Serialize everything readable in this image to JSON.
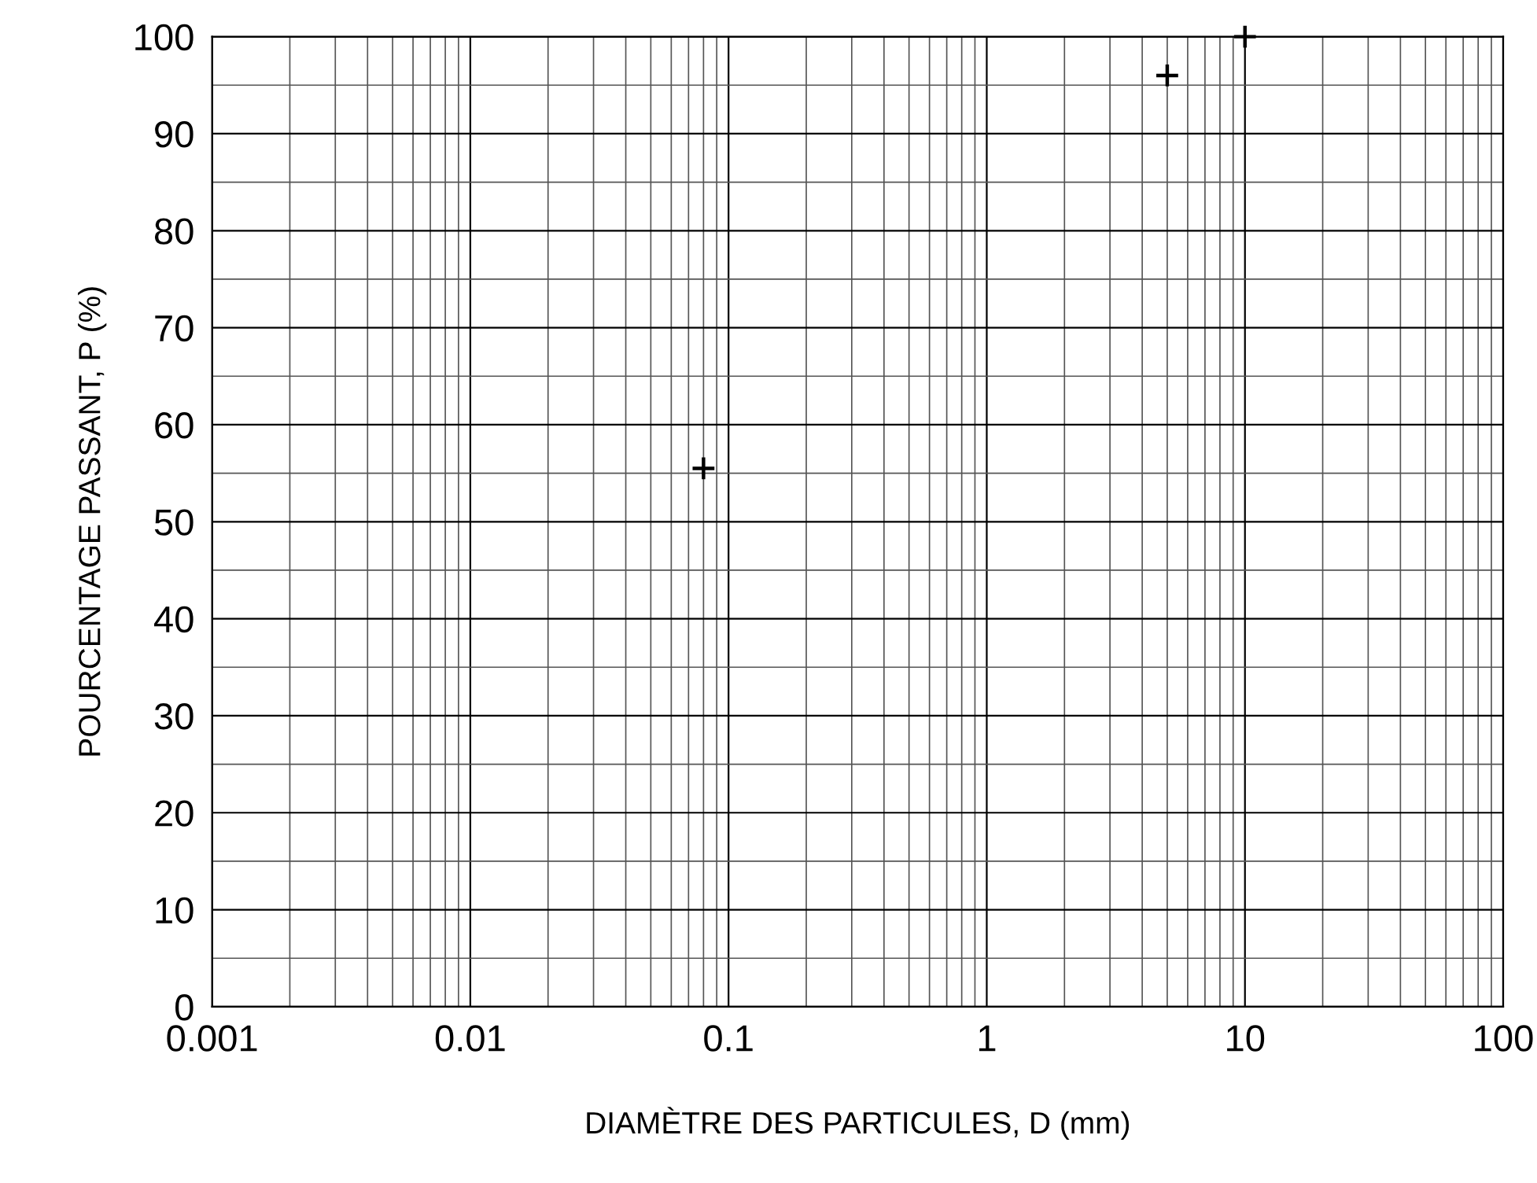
{
  "chart_data": {
    "type": "scatter",
    "xlabel": "DIAMÈTRE DES PARTICULES, D (mm)",
    "ylabel": "POURCENTAGE PASSANT, P (%)",
    "x": [
      0.08,
      5,
      10
    ],
    "values": [
      55.5,
      96,
      100
    ],
    "color": "#000000",
    "marker": "cross",
    "log": "x",
    "xlim": [
      0.001,
      100
    ],
    "xticks": [
      0.001,
      0.01,
      0.1,
      1,
      10,
      100
    ],
    "ylim": [
      0,
      100
    ],
    "yticks": [
      0,
      10,
      20,
      30,
      40,
      50,
      60,
      70,
      80,
      90,
      100
    ],
    "grid": true,
    "legend": false
  }
}
